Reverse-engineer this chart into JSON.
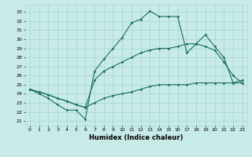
{
  "xlabel": "Humidex (Indice chaleur)",
  "bg_color": "#c8ebe8",
  "grid_color": "#a8d8d0",
  "line_color": "#1a6e60",
  "xlim": [
    -0.5,
    23.5
  ],
  "ylim": [
    20.5,
    33.8
  ],
  "x_ticks": [
    0,
    1,
    2,
    3,
    4,
    5,
    6,
    7,
    8,
    9,
    10,
    11,
    12,
    13,
    14,
    15,
    16,
    17,
    18,
    19,
    20,
    21,
    22,
    23
  ],
  "y_ticks": [
    21,
    22,
    23,
    24,
    25,
    26,
    27,
    28,
    29,
    30,
    31,
    32,
    33
  ],
  "line1_x": [
    0,
    1,
    2,
    3,
    4,
    5,
    6,
    7,
    8,
    9,
    10,
    11,
    12,
    13,
    14,
    15,
    16,
    17,
    18,
    19,
    20,
    21,
    22,
    23
  ],
  "line1_y": [
    24.5,
    24.0,
    23.5,
    22.8,
    22.2,
    22.2,
    21.2,
    26.5,
    27.8,
    29.0,
    30.2,
    31.8,
    32.2,
    33.1,
    32.5,
    32.5,
    32.5,
    28.5,
    29.5,
    30.5,
    29.2,
    28.0,
    25.2,
    25.2
  ],
  "line2_x": [
    0,
    1,
    2,
    3,
    4,
    5,
    6,
    7,
    8,
    9,
    10,
    11,
    12,
    13,
    14,
    15,
    16,
    17,
    18,
    19,
    20,
    21,
    22,
    23
  ],
  "line2_y": [
    24.5,
    24.2,
    23.9,
    23.5,
    23.2,
    22.8,
    22.5,
    25.5,
    26.5,
    27.0,
    27.5,
    28.0,
    28.5,
    28.8,
    29.0,
    29.0,
    29.2,
    29.5,
    29.5,
    29.2,
    28.8,
    27.5,
    26.0,
    25.2
  ],
  "line3_x": [
    0,
    1,
    2,
    3,
    4,
    5,
    6,
    7,
    8,
    9,
    10,
    11,
    12,
    13,
    14,
    15,
    16,
    17,
    18,
    19,
    20,
    21,
    22,
    23
  ],
  "line3_y": [
    24.5,
    24.2,
    23.9,
    23.5,
    23.2,
    22.8,
    22.5,
    23.0,
    23.5,
    23.8,
    24.0,
    24.2,
    24.5,
    24.8,
    25.0,
    25.0,
    25.0,
    25.0,
    25.2,
    25.2,
    25.2,
    25.2,
    25.2,
    25.5
  ]
}
